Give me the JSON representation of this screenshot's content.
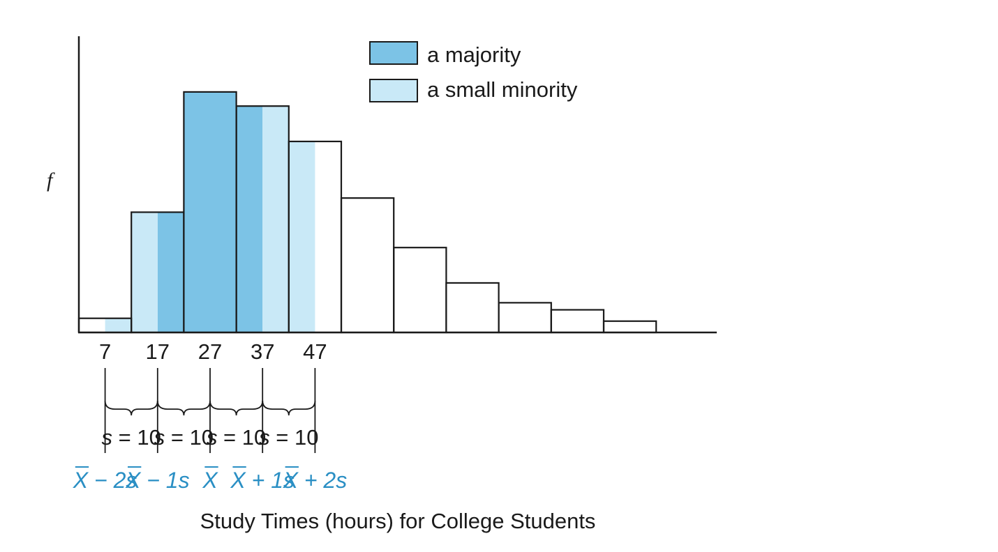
{
  "chart_data": {
    "type": "bar",
    "xlabel": "Study Times (hours) for College Students",
    "ylabel": "f",
    "bins": [
      {
        "start": 2,
        "end": 12,
        "frequency": 1
      },
      {
        "start": 12,
        "end": 22,
        "frequency": 8.5
      },
      {
        "start": 22,
        "end": 32,
        "frequency": 17
      },
      {
        "start": 32,
        "end": 42,
        "frequency": 16
      },
      {
        "start": 42,
        "end": 52,
        "frequency": 13.5
      },
      {
        "start": 52,
        "end": 62,
        "frequency": 9.5
      },
      {
        "start": 62,
        "end": 72,
        "frequency": 6
      },
      {
        "start": 72,
        "end": 82,
        "frequency": 3.5
      },
      {
        "start": 82,
        "end": 92,
        "frequency": 2.1
      },
      {
        "start": 92,
        "end": 102,
        "frequency": 1.6
      },
      {
        "start": 102,
        "end": 112,
        "frequency": 0.8
      }
    ],
    "x_ticks": [
      "7",
      "17",
      "27",
      "37",
      "47"
    ],
    "tick_values": [
      7,
      17,
      27,
      37,
      47
    ],
    "shaded_regions": [
      {
        "name": "a majority",
        "from": 17,
        "to": 37,
        "color": "#7cc3e6"
      },
      {
        "name": "a small minority",
        "from": 7,
        "to": 17,
        "color": "#c9e9f7"
      },
      {
        "name": "a small minority",
        "from": 37,
        "to": 47,
        "color": "#c9e9f7"
      }
    ],
    "legend": {
      "placement": "top-center",
      "entries": [
        {
          "label": "a majority",
          "color": "#7cc3e6"
        },
        {
          "label": "a small minority",
          "color": "#c9e9f7"
        }
      ]
    },
    "spacing_labels": [
      {
        "var": "s",
        "text": " = 10"
      },
      {
        "var": "s",
        "text": " = 10"
      },
      {
        "var": "s",
        "text": " = 10"
      },
      {
        "var": "s",
        "text": " = 10"
      }
    ],
    "sd_labels": [
      {
        "x": "X",
        "rest": "− 2s"
      },
      {
        "x": "X",
        "rest": "− 1s"
      },
      {
        "x": "X",
        "rest": ""
      },
      {
        "x": "X",
        "rest": "+ 1s"
      },
      {
        "x": "X",
        "rest": "+ 2s"
      }
    ],
    "colors": {
      "outline": "#1a1a1a",
      "sd_label": "#2a8fc4"
    }
  }
}
